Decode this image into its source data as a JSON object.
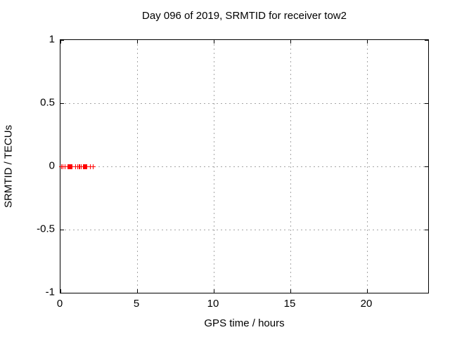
{
  "chart_data": {
    "type": "scatter",
    "title": "Day 096 of 2019, SRMTID for receiver tow2",
    "xlabel": "GPS time / hours",
    "ylabel": "SRMTID / TECUs",
    "xlim": [
      0,
      24
    ],
    "ylim": [
      -1,
      1
    ],
    "xticks": [
      0,
      5,
      10,
      15,
      20
    ],
    "yticks": [
      -1,
      -0.5,
      0,
      0.5,
      1
    ],
    "grid": true,
    "legend": "none",
    "grid_color": "#a6a6a6",
    "axis_color": "#000000",
    "background_color": "#ffffff",
    "series": [
      {
        "name": "SRMTID",
        "marker": "plus",
        "color": "#ff0000",
        "x": [
          0.05,
          0.15,
          0.27,
          0.45,
          0.5,
          0.55,
          0.6,
          0.65,
          0.7,
          0.75,
          0.95,
          1.08,
          1.18,
          1.25,
          1.32,
          1.45,
          1.5,
          1.55,
          1.6,
          1.65,
          1.7,
          1.93,
          2.1
        ],
        "y": [
          0,
          0,
          0,
          0,
          0,
          0,
          0,
          0,
          0,
          0,
          0,
          0,
          0,
          0,
          0,
          0,
          0,
          0,
          0,
          0,
          0,
          0,
          0
        ]
      }
    ]
  }
}
